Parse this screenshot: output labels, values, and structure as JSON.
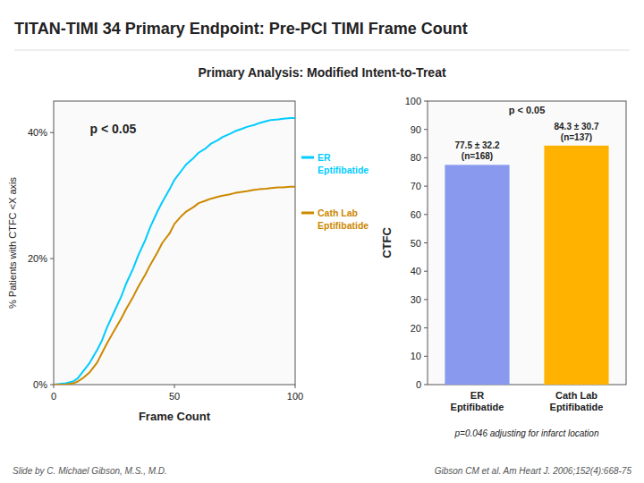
{
  "chart_data": [
    {
      "type": "line",
      "title": "TITAN-TIMI 34 Primary Endpoint: Pre-PCI TIMI Frame Count",
      "subtitle": "Primary Analysis: Modified Intent-to-Treat",
      "xlabel": "Frame Count",
      "ylabel": "% Patients with CTFC <X axis",
      "x": [
        0,
        5,
        8,
        10,
        12,
        15,
        18,
        20,
        22,
        25,
        28,
        30,
        33,
        35,
        38,
        40,
        43,
        45,
        48,
        50,
        53,
        55,
        58,
        60,
        63,
        65,
        68,
        70,
        73,
        75,
        78,
        80,
        83,
        85,
        88,
        90,
        93,
        95,
        98,
        100
      ],
      "series": [
        {
          "name": "ER\nEptifibatide",
          "color": "#00CCFF",
          "values": [
            0,
            0.2,
            0.5,
            1.0,
            2.0,
            3.5,
            5.5,
            7.0,
            9.0,
            11.5,
            14.0,
            16.0,
            18.5,
            20.5,
            23.0,
            25.0,
            27.5,
            29.0,
            31.0,
            32.5,
            34.0,
            35.0,
            36.0,
            36.8,
            37.5,
            38.2,
            38.8,
            39.3,
            39.8,
            40.2,
            40.6,
            40.9,
            41.2,
            41.5,
            41.8,
            42.0,
            42.1,
            42.2,
            42.3,
            42.3
          ]
        },
        {
          "name": "Cath Lab\nEptifibatide",
          "color": "#CC8800",
          "values": [
            0,
            0,
            0.2,
            0.5,
            1.0,
            2.0,
            3.5,
            5.0,
            6.5,
            8.5,
            10.5,
            12.0,
            14.0,
            15.5,
            17.5,
            19.0,
            21.0,
            22.5,
            24.0,
            25.5,
            26.8,
            27.5,
            28.2,
            28.8,
            29.2,
            29.5,
            29.8,
            30.0,
            30.2,
            30.4,
            30.6,
            30.7,
            30.9,
            31.0,
            31.1,
            31.2,
            31.3,
            31.3,
            31.4,
            31.4
          ]
        }
      ],
      "xlim": [
        0,
        100
      ],
      "xticks": [
        0,
        50,
        100
      ],
      "ylim": [
        0,
        45
      ],
      "yticks": [
        {
          "value": 0,
          "label": "0%"
        },
        {
          "value": 20,
          "label": "20%"
        },
        {
          "value": 40,
          "label": "40%"
        }
      ],
      "legend": "right",
      "annotations": [
        "p < 0.05"
      ],
      "footer": [
        "Slide by C. Michael Gibson, M.S., M.D.",
        "Gibson CM et al. Am Heart J. 2006;152(4):668-75"
      ]
    },
    {
      "type": "bar",
      "ylabel": "CTFC",
      "categories": [
        "ER\nEptifibatide",
        "Cath Lab\nEptifibatide"
      ],
      "values": [
        77.5,
        84.3
      ],
      "value_labels": [
        "77.5 ± 32.2\n(n=168)",
        "84.3 ± 30.7\n(n=137)"
      ],
      "data_labels": true,
      "colors": [
        "#8899ee",
        "#FFB300"
      ],
      "ylim": [
        0,
        100
      ],
      "yticks": [
        0,
        10,
        20,
        30,
        40,
        50,
        60,
        70,
        80,
        90,
        100
      ],
      "annotations": [
        "p < 0.05",
        "p=0.046 adjusting for infarct location"
      ]
    }
  ]
}
